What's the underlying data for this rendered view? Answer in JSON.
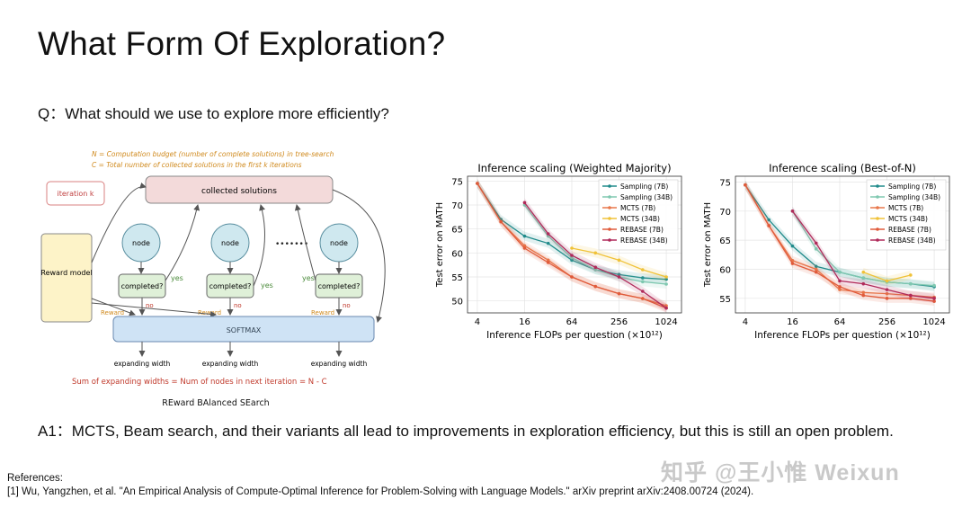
{
  "slide": {
    "title": "What Form Of Exploration?",
    "question": "Q：What should we use to explore more efficiently?",
    "answer": "A1：MCTS, Beam search, and their variants all lead to improvements in exploration efficiency, but this is still an open problem.",
    "references_heading": "References:",
    "reference_1": "[1] Wu, Yangzhen, et al. \"An Empirical Analysis of Compute-Optimal Inference for Problem-Solving with Language Models.\" arXiv preprint arXiv:2408.00724 (2024).",
    "watermark": "知乎 @王小惟 Weixun"
  },
  "diagram": {
    "note_n": "N = Computation budget (number of complete solutions) in tree-search",
    "note_c": "C = Total number of collected solutions in the first k iterations",
    "iteration_label": "iteration k",
    "collected_label": "collected solutions",
    "reward_model_label": "Reward model",
    "node_label": "node",
    "completed_label": "completed?",
    "yes_label": "yes",
    "no_label": "no",
    "reward_label": "Reward",
    "softmax_label": "SOFTMAX",
    "expanding_label": "expanding width",
    "ellipsis": "•••••••",
    "equation": "Sum of expanding widths = Num of nodes in next iteration = N - C",
    "caption": "REward BAlanced SEarch",
    "colors": {
      "note": "#d08a1e",
      "node_fill": "#cfe8ef",
      "completed_fill": "#dff0d8",
      "reward_fill": "#fdf3c8",
      "softmax_fill": "#cfe3f5",
      "collected_fill": "#f3dada",
      "equation": "#c0392b"
    }
  },
  "chart_data": [
    {
      "type": "line",
      "title": "Inference scaling (Weighted Majority)",
      "xlabel": "Inference FLOPs per question (×10¹²)",
      "ylabel": "Test error on MATH",
      "x_scale": "log2",
      "xlim": [
        3,
        1600
      ],
      "ylim": [
        47.5,
        76
      ],
      "xticks": [
        4,
        16,
        64,
        256,
        1024
      ],
      "yticks": [
        50,
        55,
        60,
        65,
        70,
        75
      ],
      "grid": true,
      "legend_position": "top-right",
      "series": [
        {
          "name": "Sampling (7B)",
          "color": "#1f8a8a",
          "x": [
            4,
            8,
            16,
            32,
            64,
            128,
            256,
            512,
            1024
          ],
          "y": [
            74.5,
            67,
            63.5,
            62,
            58.5,
            56.5,
            55.5,
            54.8,
            54.5
          ]
        },
        {
          "name": "Sampling (34B)",
          "color": "#7fc8b0",
          "x": [
            16,
            32,
            64,
            128,
            256,
            512,
            1024
          ],
          "y": [
            70,
            63.5,
            59,
            56.5,
            55,
            54,
            53.5
          ]
        },
        {
          "name": "MCTS (7B)",
          "color": "#e8774a",
          "x": [
            4,
            8,
            16,
            32,
            64,
            128,
            256,
            512,
            1024
          ],
          "y": [
            74.5,
            66.5,
            61.5,
            58.5,
            55,
            53,
            51.5,
            50.5,
            49
          ]
        },
        {
          "name": "MCTS (34B)",
          "color": "#f0c238",
          "x": [
            64,
            128,
            256,
            512,
            1024
          ],
          "y": [
            61,
            60,
            58.5,
            56.5,
            55
          ]
        },
        {
          "name": "REBASE (7B)",
          "color": "#e05a3a",
          "x": [
            4,
            8,
            16,
            32,
            64,
            128,
            256,
            512,
            1024
          ],
          "y": [
            74.5,
            66.5,
            61,
            58,
            55,
            53,
            51.5,
            50.5,
            48.5
          ]
        },
        {
          "name": "REBASE (34B)",
          "color": "#b02a5a",
          "x": [
            16,
            32,
            64,
            128,
            256,
            512,
            1024
          ],
          "y": [
            70.5,
            64,
            59.5,
            57,
            55,
            52,
            48.5
          ]
        }
      ]
    },
    {
      "type": "line",
      "title": "Inference scaling (Best-of-N)",
      "xlabel": "Inference FLOPs per question (×10¹²)",
      "ylabel": "Test error on MATH",
      "x_scale": "log2",
      "xlim": [
        3,
        1600
      ],
      "ylim": [
        52.5,
        76
      ],
      "xticks": [
        4,
        16,
        64,
        256,
        1024
      ],
      "yticks": [
        55,
        60,
        65,
        70,
        75
      ],
      "grid": true,
      "legend_position": "top-right",
      "series": [
        {
          "name": "Sampling (7B)",
          "color": "#1f8a8a",
          "x": [
            4,
            8,
            16,
            32,
            64,
            128,
            256,
            512,
            1024
          ],
          "y": [
            74.5,
            68.5,
            64,
            60.5,
            59.5,
            58.5,
            57.8,
            57.5,
            57
          ]
        },
        {
          "name": "Sampling (34B)",
          "color": "#7fc8b0",
          "x": [
            16,
            32,
            64,
            128,
            256,
            512,
            1024
          ],
          "y": [
            70,
            63.5,
            59.5,
            58.5,
            57.8,
            57.5,
            57.2
          ]
        },
        {
          "name": "MCTS (7B)",
          "color": "#e8774a",
          "x": [
            4,
            8,
            16,
            32,
            64,
            128,
            256,
            512,
            1024
          ],
          "y": [
            74.5,
            67.5,
            61.5,
            60,
            56.5,
            56,
            55.8,
            55.5,
            55.2
          ]
        },
        {
          "name": "MCTS (34B)",
          "color": "#f0c238",
          "x": [
            128,
            256,
            512
          ],
          "y": [
            59.5,
            58,
            59
          ]
        },
        {
          "name": "REBASE (7B)",
          "color": "#e05a3a",
          "x": [
            4,
            8,
            16,
            32,
            64,
            128,
            256,
            512,
            1024
          ],
          "y": [
            74.5,
            67.5,
            61,
            59.5,
            57,
            55.5,
            55,
            55,
            54.5
          ]
        },
        {
          "name": "REBASE (34B)",
          "color": "#b02a5a",
          "x": [
            16,
            32,
            64,
            128,
            256,
            512,
            1024
          ],
          "y": [
            70,
            64.5,
            58,
            57.5,
            56.5,
            55.5,
            55
          ]
        }
      ]
    }
  ]
}
